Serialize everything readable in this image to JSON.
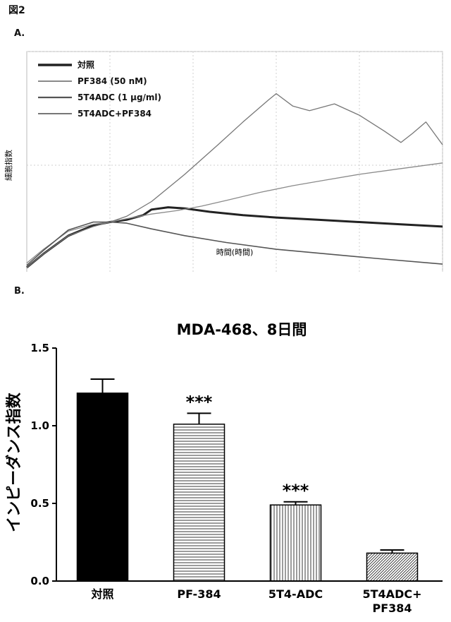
{
  "figure": {
    "title": "図2",
    "panel_a_label": "A.",
    "panel_b_label": "B."
  },
  "chart_data": [
    {
      "type": "line",
      "xlabel": "時間(時間)",
      "ylabel": "細胞指数",
      "legend_position": "top-left",
      "grid": true,
      "xlim": [
        0,
        250
      ],
      "ylim": [
        0,
        2
      ],
      "series": [
        {
          "name": "対照",
          "color": "#222222",
          "points": [
            [
              0,
              0.1
            ],
            [
              10,
              0.22
            ],
            [
              25,
              0.38
            ],
            [
              40,
              0.47
            ],
            [
              50,
              0.5
            ],
            [
              60,
              0.52
            ],
            [
              70,
              0.56
            ],
            [
              75,
              0.61
            ],
            [
              85,
              0.63
            ],
            [
              95,
              0.62
            ],
            [
              110,
              0.59
            ],
            [
              130,
              0.56
            ],
            [
              150,
              0.54
            ],
            [
              175,
              0.52
            ],
            [
              200,
              0.5
            ],
            [
              225,
              0.48
            ],
            [
              250,
              0.46
            ]
          ]
        },
        {
          "name": "PF384 (50 nM)",
          "color": "#8a8a8a",
          "points": [
            [
              0,
              0.14
            ],
            [
              10,
              0.26
            ],
            [
              25,
              0.42
            ],
            [
              40,
              0.48
            ],
            [
              50,
              0.5
            ],
            [
              60,
              0.53
            ],
            [
              75,
              0.57
            ],
            [
              90,
              0.6
            ],
            [
              105,
              0.64
            ],
            [
              120,
              0.69
            ],
            [
              140,
              0.76
            ],
            [
              160,
              0.82
            ],
            [
              180,
              0.87
            ],
            [
              200,
              0.92
            ],
            [
              225,
              0.97
            ],
            [
              250,
              1.02
            ]
          ]
        },
        {
          "name": "5T4ADC (1 μg/ml)",
          "color": "#555555",
          "points": [
            [
              0,
              0.12
            ],
            [
              10,
              0.25
            ],
            [
              25,
              0.43
            ],
            [
              40,
              0.5
            ],
            [
              50,
              0.5
            ],
            [
              60,
              0.49
            ],
            [
              75,
              0.44
            ],
            [
              95,
              0.38
            ],
            [
              120,
              0.32
            ],
            [
              150,
              0.26
            ],
            [
              180,
              0.22
            ],
            [
              210,
              0.18
            ],
            [
              250,
              0.13
            ]
          ]
        },
        {
          "name": "5T4ADC+PF384",
          "color": "#777777",
          "points": [
            [
              0,
              0.1
            ],
            [
              10,
              0.22
            ],
            [
              25,
              0.38
            ],
            [
              40,
              0.46
            ],
            [
              50,
              0.5
            ],
            [
              60,
              0.55
            ],
            [
              75,
              0.68
            ],
            [
              95,
              0.92
            ],
            [
              115,
              1.18
            ],
            [
              130,
              1.38
            ],
            [
              145,
              1.57
            ],
            [
              150,
              1.63
            ],
            [
              160,
              1.52
            ],
            [
              170,
              1.48
            ],
            [
              185,
              1.54
            ],
            [
              200,
              1.44
            ],
            [
              215,
              1.3
            ],
            [
              225,
              1.2
            ],
            [
              232,
              1.28
            ],
            [
              240,
              1.38
            ],
            [
              250,
              1.18
            ]
          ]
        }
      ]
    },
    {
      "type": "bar",
      "title": "MDA-468、8日間",
      "ylabel": "インピーダンス指数",
      "ylim": [
        0,
        1.5
      ],
      "yticks": [
        "0.0",
        "0.5",
        "1.0",
        "1.5"
      ],
      "categories": [
        "対照",
        "PF-384",
        "5T4-ADC",
        "5T4ADC+\nPF384"
      ],
      "values": [
        1.21,
        1.01,
        0.49,
        0.18
      ],
      "errors": [
        0.09,
        0.07,
        0.02,
        0.02
      ],
      "annotations": [
        "",
        "***",
        "***",
        ""
      ],
      "patterns": [
        "solid",
        "horizontal",
        "vertical",
        "diagonal"
      ]
    }
  ]
}
